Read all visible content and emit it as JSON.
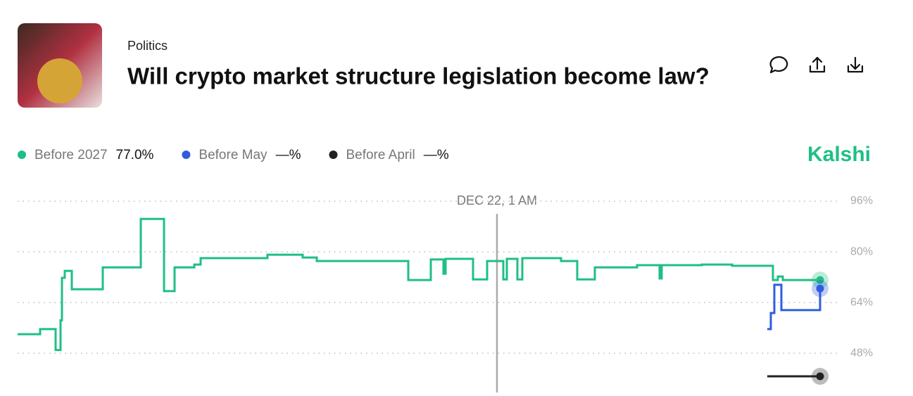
{
  "header": {
    "category": "Politics",
    "title": "Will crypto market structure legislation become law?"
  },
  "brand": "Kalshi",
  "legend": [
    {
      "name": "Before 2027",
      "value": "77.0%",
      "color": "#1fbf85"
    },
    {
      "name": "Before May",
      "value": "—%",
      "color": "#2f5de0"
    },
    {
      "name": "Before April",
      "value": "—%",
      "color": "#222222"
    }
  ],
  "chart": {
    "type": "line",
    "hover_label": "DEC 22, 1 AM",
    "xlim": [
      0,
      1140
    ],
    "ylim": [
      35.6,
      96
    ],
    "yticks": [
      {
        "value": 96,
        "label": "96%"
      },
      {
        "value": 80,
        "label": "80%"
      },
      {
        "value": 64,
        "label": "64%"
      },
      {
        "value": 48,
        "label": "48%"
      }
    ],
    "series": [
      {
        "color": "#1fbf85",
        "x": [
          0,
          32,
          54,
          61,
          63,
          67,
          77,
          121,
          175,
          208,
          223,
          251,
          260,
          355,
          405,
          425,
          555,
          587,
          605,
          608,
          647,
          667,
          690,
          695,
          710,
          717,
          772,
          795,
          820,
          880,
          912,
          915,
          972,
          1015,
          1073,
          1080,
          1087,
          1140
        ],
        "values": [
          54,
          55.6,
          49,
          58.4,
          71.8,
          74,
          68.2,
          75.1,
          90.4,
          67.6,
          75.1,
          76,
          78,
          79.1,
          78.2,
          77.1,
          71.1,
          77.6,
          73.1,
          77.8,
          71.3,
          77.1,
          71.3,
          77.8,
          71.3,
          78,
          77.1,
          71.3,
          75.1,
          75.8,
          71.6,
          75.8,
          76,
          75.6,
          71.1,
          72.2,
          71.1,
          71.1
        ]
      },
      {
        "color": "#2f5de0",
        "x": [
          1065,
          1070,
          1075,
          1085,
          1140
        ],
        "values": [
          55.6,
          60.7,
          69.6,
          61.6,
          68.4
        ]
      },
      {
        "color": "#222222",
        "x": [
          1065,
          1140
        ],
        "values": [
          40.7,
          40.7
        ]
      }
    ]
  }
}
